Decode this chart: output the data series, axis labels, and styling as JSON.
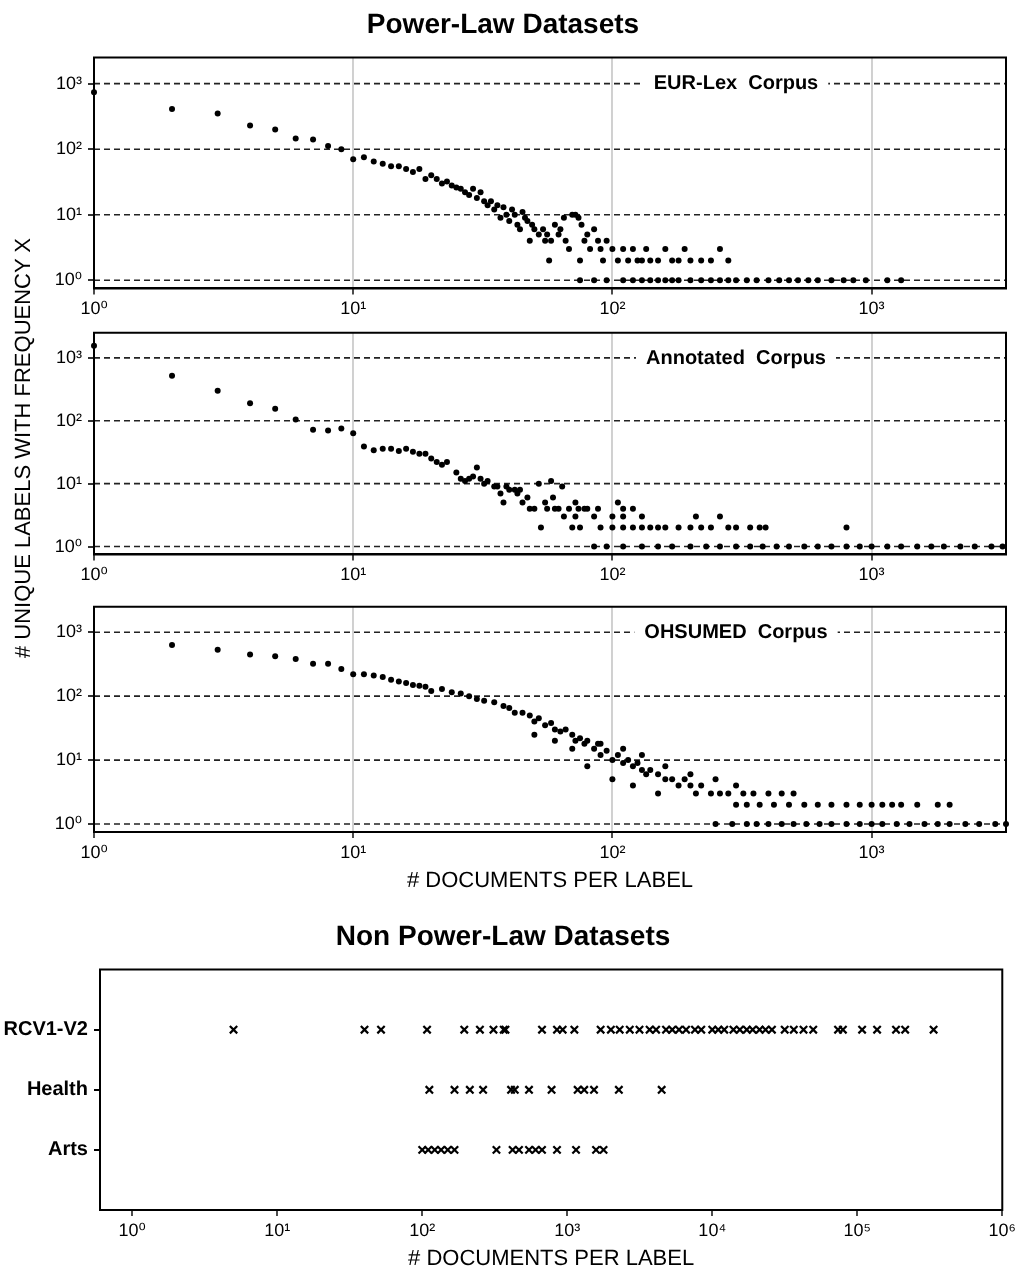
{
  "chart_data": [
    {
      "type": "scatter",
      "title": "Power-Law Datasets",
      "annotations": [
        "EUR-Lex  Corpus"
      ],
      "color": "#000000",
      "marker": "circle",
      "log": "xy",
      "grid": true,
      "xlim": [
        1,
        3300
      ],
      "xticks": [
        {
          "value": 1,
          "label": "10⁰"
        },
        {
          "value": 10,
          "label": "10¹"
        },
        {
          "value": 100,
          "label": "10²"
        },
        {
          "value": 1000,
          "label": "10³"
        }
      ],
      "ylim": [
        0.75,
        2500
      ],
      "yticks": [
        {
          "value": 1,
          "label": "10⁰"
        },
        {
          "value": 10,
          "label": "10¹"
        },
        {
          "value": 100,
          "label": "10²"
        },
        {
          "value": 1000,
          "label": "10³"
        }
      ],
      "x": [
        1,
        2,
        3,
        4,
        5,
        6,
        7,
        8,
        9,
        10,
        11,
        12,
        13,
        14,
        15,
        16,
        17,
        18,
        19,
        20,
        21,
        22,
        23,
        24,
        25,
        26,
        27,
        28,
        29,
        30,
        31,
        32,
        33,
        34,
        35,
        36,
        37,
        38,
        39,
        40,
        41,
        42,
        43,
        44,
        45,
        46,
        47,
        48,
        49,
        50,
        52,
        54,
        55,
        56,
        57,
        58,
        60,
        62,
        63,
        65,
        66,
        68,
        70,
        72,
        74,
        75,
        76,
        78,
        80,
        82,
        85,
        88,
        90,
        92,
        95,
        100,
        105,
        110,
        115,
        120,
        125,
        130,
        135,
        140,
        150,
        160,
        170,
        180,
        190,
        200,
        220,
        240,
        260,
        280,
        75,
        85,
        95,
        110,
        120,
        130,
        140,
        150,
        160,
        170,
        180,
        200,
        220,
        240,
        260,
        280,
        300,
        330,
        360,
        400,
        440,
        480,
        520,
        570,
        620,
        700,
        780,
        850,
        950,
        1150,
        1300
      ],
      "values": [
        740,
        410,
        350,
        230,
        200,
        145,
        140,
        112,
        100,
        70,
        75,
        65,
        60,
        55,
        55,
        50,
        45,
        50,
        35,
        40,
        35,
        30,
        32,
        28,
        26,
        25,
        22,
        20,
        25,
        18,
        22,
        16,
        14,
        16,
        12,
        14,
        9,
        13,
        10,
        8,
        12,
        10,
        7,
        6,
        11,
        9,
        8,
        4,
        7,
        6,
        5,
        6,
        4,
        5,
        2,
        4,
        7,
        5,
        6,
        9,
        4,
        3,
        10,
        10,
        9,
        2,
        7,
        4,
        5,
        3,
        6,
        4,
        3,
        2,
        4,
        3,
        2,
        3,
        2,
        3,
        2,
        2,
        3,
        2,
        2,
        3,
        2,
        2,
        3,
        2,
        2,
        2,
        3,
        2,
        1,
        1,
        1,
        1,
        1,
        1,
        1,
        1,
        1,
        1,
        1,
        1,
        1,
        1,
        1,
        1,
        1,
        1,
        1,
        1,
        1,
        1,
        1,
        1,
        1,
        1,
        1,
        1,
        1,
        1,
        1
      ]
    },
    {
      "type": "scatter",
      "ylabel": "# UNIQUE LABELS WITH FREQUENCY X",
      "annotations": [
        "Annotated  Corpus"
      ],
      "color": "#000000",
      "marker": "circle",
      "log": "xy",
      "grid": true,
      "xlim": [
        1,
        3300
      ],
      "xticks": [
        {
          "value": 1,
          "label": "10⁰"
        },
        {
          "value": 10,
          "label": "10¹"
        },
        {
          "value": 100,
          "label": "10²"
        },
        {
          "value": 1000,
          "label": "10³"
        }
      ],
      "ylim": [
        0.75,
        2500
      ],
      "yticks": [
        {
          "value": 1,
          "label": "10⁰"
        },
        {
          "value": 10,
          "label": "10¹"
        },
        {
          "value": 100,
          "label": "10²"
        },
        {
          "value": 1000,
          "label": "10³"
        }
      ],
      "x": [
        1,
        2,
        3,
        4,
        5,
        6,
        7,
        8,
        9,
        10,
        11,
        12,
        13,
        14,
        15,
        16,
        17,
        18,
        19,
        20,
        21,
        22,
        23,
        25,
        26,
        27,
        28,
        29,
        30,
        31,
        32,
        33,
        35,
        36,
        37,
        38,
        39,
        40,
        42,
        43,
        44,
        45,
        47,
        48,
        50,
        52,
        55,
        56,
        58,
        59,
        60,
        62,
        64,
        68,
        72,
        74,
        78,
        80,
        88,
        105,
        110,
        120,
        65,
        72,
        85,
        100,
        110,
        130,
        210,
        260,
        53,
        70,
        75,
        90,
        100,
        110,
        120,
        130,
        140,
        150,
        160,
        180,
        200,
        220,
        240,
        280,
        300,
        340,
        370,
        390,
        800,
        85,
        95,
        110,
        130,
        150,
        170,
        200,
        230,
        260,
        300,
        340,
        380,
        430,
        480,
        550,
        620,
        700,
        800,
        900,
        1000,
        1150,
        1300,
        1500,
        1700,
        1900,
        2200,
        2500,
        2900,
        3200
      ],
      "values": [
        1550,
        520,
        300,
        190,
        155,
        105,
        72,
        70,
        75,
        63,
        39,
        34,
        36,
        36,
        33,
        36,
        32,
        30,
        30,
        25,
        22,
        20,
        22,
        15,
        12,
        11,
        12,
        13,
        18,
        12,
        10,
        11,
        9,
        9,
        7,
        5,
        9,
        8,
        8,
        7,
        8,
        5,
        6,
        4,
        4,
        10,
        5,
        4,
        11,
        6,
        4,
        4,
        9,
        4,
        5,
        4,
        4,
        4,
        4,
        5,
        4,
        4,
        3,
        3,
        3,
        3,
        3,
        3,
        3,
        3,
        2,
        2,
        2,
        2,
        2,
        2,
        2,
        2,
        2,
        2,
        2,
        2,
        2,
        2,
        2,
        2,
        2,
        2,
        2,
        2,
        2,
        1,
        1,
        1,
        1,
        1,
        1,
        1,
        1,
        1,
        1,
        1,
        1,
        1,
        1,
        1,
        1,
        1,
        1,
        1,
        1,
        1,
        1,
        1,
        1,
        1,
        1,
        1,
        1,
        1
      ]
    },
    {
      "type": "scatter",
      "xlabel": "# DOCUMENTS PER LABEL",
      "annotations": [
        "OHSUMED  Corpus"
      ],
      "color": "#000000",
      "marker": "circle",
      "log": "xy",
      "grid": true,
      "xlim": [
        1,
        3300
      ],
      "xticks": [
        {
          "value": 1,
          "label": "10⁰"
        },
        {
          "value": 10,
          "label": "10¹"
        },
        {
          "value": 100,
          "label": "10²"
        },
        {
          "value": 1000,
          "label": "10³"
        }
      ],
      "ylim": [
        0.75,
        2500
      ],
      "yticks": [
        {
          "value": 1,
          "label": "10⁰"
        },
        {
          "value": 10,
          "label": "10¹"
        },
        {
          "value": 100,
          "label": "10²"
        },
        {
          "value": 1000,
          "label": "10³"
        }
      ],
      "x": [
        2,
        3,
        4,
        5,
        6,
        7,
        8,
        9,
        10,
        11,
        12,
        13,
        14,
        15,
        16,
        17,
        18,
        19,
        20,
        22,
        24,
        26,
        28,
        30,
        32,
        35,
        38,
        40,
        42,
        45,
        48,
        50,
        52,
        55,
        58,
        60,
        63,
        66,
        70,
        72,
        75,
        78,
        80,
        85,
        88,
        90,
        95,
        100,
        105,
        110,
        115,
        120,
        125,
        130,
        135,
        140,
        150,
        160,
        170,
        180,
        190,
        200,
        210,
        220,
        240,
        260,
        280,
        320,
        350,
        400,
        450,
        500,
        50,
        60,
        70,
        80,
        90,
        100,
        110,
        120,
        130,
        150,
        160,
        200,
        250,
        300,
        300,
        330,
        370,
        420,
        480,
        550,
        620,
        700,
        800,
        900,
        1000,
        1100,
        1200,
        1300,
        1500,
        1800,
        2000,
        250,
        290,
        330,
        360,
        400,
        450,
        500,
        560,
        630,
        700,
        800,
        900,
        1000,
        1100,
        1250,
        1400,
        1600,
        1800,
        2000,
        2300,
        2600,
        3000,
        3300
      ],
      "values": [
        630,
        530,
        450,
        420,
        380,
        320,
        320,
        265,
        220,
        220,
        210,
        200,
        180,
        170,
        160,
        150,
        145,
        140,
        120,
        130,
        115,
        110,
        100,
        90,
        85,
        80,
        70,
        65,
        55,
        55,
        50,
        40,
        45,
        35,
        38,
        30,
        28,
        30,
        25,
        20,
        22,
        18,
        20,
        15,
        18,
        12,
        14,
        10,
        12,
        9,
        10,
        8,
        9,
        7,
        6,
        7,
        6,
        5,
        5,
        4,
        5,
        4,
        3,
        4,
        3,
        3,
        3,
        3,
        3,
        3,
        3,
        3,
        25,
        20,
        15,
        8,
        18,
        5,
        15,
        4,
        12,
        3,
        8,
        6,
        5,
        4,
        2,
        2,
        2,
        2,
        2,
        2,
        2,
        2,
        2,
        2,
        2,
        2,
        2,
        2,
        2,
        2,
        2,
        1,
        1,
        1,
        1,
        1,
        1,
        1,
        1,
        1,
        1,
        1,
        1,
        1,
        1,
        1,
        1,
        1,
        1,
        1,
        1,
        1,
        1,
        1
      ]
    },
    {
      "type": "scatter",
      "title": "Non Power-Law Datasets",
      "xlabel": "# DOCUMENTS PER LABEL",
      "orientation": "horizontal",
      "marker": "cross",
      "log": "x",
      "grid": false,
      "categories": [
        "RCV1-V2",
        "Health",
        "Arts"
      ],
      "xlim": [
        0.6,
        1000000
      ],
      "xticks": [
        {
          "value": 1,
          "label": "10⁰"
        },
        {
          "value": 10,
          "label": "10¹"
        },
        {
          "value": 100,
          "label": "10²"
        },
        {
          "value": 1000,
          "label": "10³"
        },
        {
          "value": 10000,
          "label": "10⁴"
        },
        {
          "value": 100000,
          "label": "10⁵"
        },
        {
          "value": 1000000,
          "label": "10⁶"
        }
      ],
      "series": [
        {
          "color": "#000000",
          "x": [
            "RCV1-V2",
            "RCV1-V2",
            "RCV1-V2",
            "RCV1-V2",
            "RCV1-V2",
            "RCV1-V2",
            "RCV1-V2",
            "RCV1-V2",
            "RCV1-V2",
            "RCV1-V2",
            "RCV1-V2",
            "RCV1-V2",
            "RCV1-V2",
            "RCV1-V2",
            "RCV1-V2",
            "RCV1-V2",
            "RCV1-V2",
            "RCV1-V2",
            "RCV1-V2",
            "RCV1-V2",
            "RCV1-V2",
            "RCV1-V2",
            "RCV1-V2",
            "RCV1-V2",
            "RCV1-V2",
            "RCV1-V2",
            "RCV1-V2",
            "RCV1-V2",
            "RCV1-V2",
            "RCV1-V2",
            "RCV1-V2",
            "RCV1-V2",
            "RCV1-V2",
            "RCV1-V2",
            "RCV1-V2",
            "RCV1-V2",
            "RCV1-V2",
            "RCV1-V2",
            "RCV1-V2",
            "RCV1-V2",
            "RCV1-V2",
            "RCV1-V2",
            "RCV1-V2",
            "RCV1-V2",
            "RCV1-V2",
            "RCV1-V2",
            "RCV1-V2"
          ],
          "values": [
            5,
            40,
            52,
            108,
            195,
            250,
            310,
            365,
            375,
            670,
            850,
            930,
            1120,
            1700,
            2000,
            2300,
            2700,
            3150,
            3700,
            4100,
            4800,
            5300,
            5900,
            6600,
            7600,
            8400,
            10000,
            11000,
            12100,
            14000,
            15500,
            17300,
            19000,
            21200,
            23300,
            25800,
            31600,
            36500,
            42600,
            49700,
            73700,
            79600,
            108000,
            137000,
            185000,
            214000,
            336000
          ]
        },
        {
          "color": "#000000",
          "x": [
            "Health",
            "Health",
            "Health",
            "Health",
            "Health",
            "Health",
            "Health",
            "Health",
            "Health",
            "Health",
            "Health",
            "Health",
            "Health"
          ],
          "values": [
            112,
            167,
            213,
            263,
            410,
            435,
            545,
            780,
            1180,
            1310,
            1530,
            2270,
            4480
          ]
        },
        {
          "color": "#000000",
          "x": [
            "Arts",
            "Arts",
            "Arts",
            "Arts",
            "Arts",
            "Arts",
            "Arts",
            "Arts",
            "Arts",
            "Arts",
            "Arts",
            "Arts",
            "Arts",
            "Arts",
            "Arts",
            "Arts"
          ],
          "values": [
            100,
            110,
            122,
            135,
            150,
            167,
            325,
            420,
            465,
            545,
            605,
            670,
            850,
            1150,
            1580,
            1780
          ]
        }
      ]
    }
  ]
}
